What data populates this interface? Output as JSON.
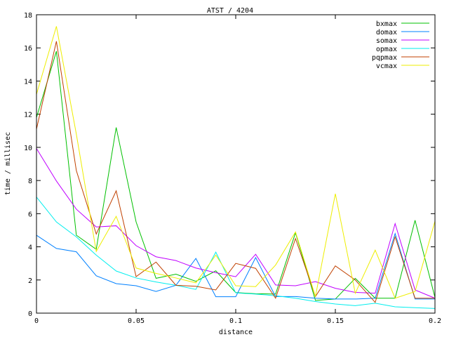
{
  "chart_data": {
    "type": "line",
    "title": "ATST / 4204",
    "xlabel": "distance",
    "ylabel": "time / millisec",
    "xlim": [
      0,
      0.2
    ],
    "ylim": [
      0,
      18
    ],
    "xticks": [
      "0",
      "0.05",
      "0.1",
      "0.15",
      "0.2"
    ],
    "xtick_values": [
      0,
      0.05,
      0.1,
      0.15,
      0.2
    ],
    "yticks": [
      "0",
      "2",
      "4",
      "6",
      "8",
      "10",
      "12",
      "14",
      "16",
      "18"
    ],
    "ytick_values": [
      0,
      2,
      4,
      6,
      8,
      10,
      12,
      14,
      16,
      18
    ],
    "grid": false,
    "legend_position": "top-right",
    "x": [
      0,
      0.01,
      0.02,
      0.03,
      0.04,
      0.05,
      0.06,
      0.07,
      0.08,
      0.09,
      0.1,
      0.11,
      0.12,
      0.13,
      0.14,
      0.15,
      0.16,
      0.17,
      0.18,
      0.19,
      0.2
    ],
    "series": [
      {
        "name": "bxmax",
        "color": "#00c000",
        "values": [
          11.8,
          15.8,
          4.7,
          3.85,
          11.2,
          5.5,
          2.1,
          2.35,
          1.92,
          2.55,
          1.24,
          1.17,
          1.15,
          4.85,
          0.77,
          0.85,
          2.1,
          0.9,
          0.9,
          5.6,
          0.95
        ]
      },
      {
        "name": "domax",
        "color": "#0080ff",
        "values": [
          4.7,
          3.9,
          3.7,
          2.25,
          1.78,
          1.65,
          1.31,
          1.68,
          3.3,
          0.99,
          0.99,
          3.35,
          1.0,
          1.0,
          0.9,
          0.85,
          0.85,
          0.9,
          4.8,
          0.85,
          0.85
        ]
      },
      {
        "name": "somax",
        "color": "#c000ff",
        "values": [
          9.93,
          7.97,
          6.27,
          5.2,
          5.27,
          4.07,
          3.4,
          3.17,
          2.72,
          2.44,
          2.2,
          3.55,
          1.7,
          1.65,
          1.9,
          1.5,
          1.25,
          1.2,
          5.4,
          1.4,
          0.9
        ]
      },
      {
        "name": "opmax",
        "color": "#00eeee",
        "values": [
          7.0,
          5.5,
          4.6,
          3.5,
          2.54,
          2.12,
          1.88,
          1.68,
          1.43,
          3.68,
          1.22,
          1.15,
          1.05,
          0.9,
          0.7,
          0.55,
          0.45,
          0.6,
          0.38,
          0.33,
          0.28
        ]
      },
      {
        "name": "pqpmax",
        "color": "#c04000",
        "values": [
          11.1,
          16.4,
          8.6,
          4.77,
          7.38,
          2.2,
          3.08,
          1.68,
          1.62,
          1.4,
          3.0,
          2.7,
          0.9,
          4.5,
          1.0,
          2.85,
          2.0,
          0.65,
          4.6,
          0.9,
          0.9
        ]
      },
      {
        "name": "vcmax",
        "color": "#eeee00",
        "values": [
          13.2,
          17.3,
          10.8,
          3.72,
          5.84,
          2.72,
          2.4,
          2.12,
          1.83,
          3.5,
          1.65,
          1.6,
          2.9,
          4.9,
          1.0,
          7.2,
          1.2,
          3.8,
          0.9,
          1.3,
          5.55
        ]
      }
    ]
  }
}
